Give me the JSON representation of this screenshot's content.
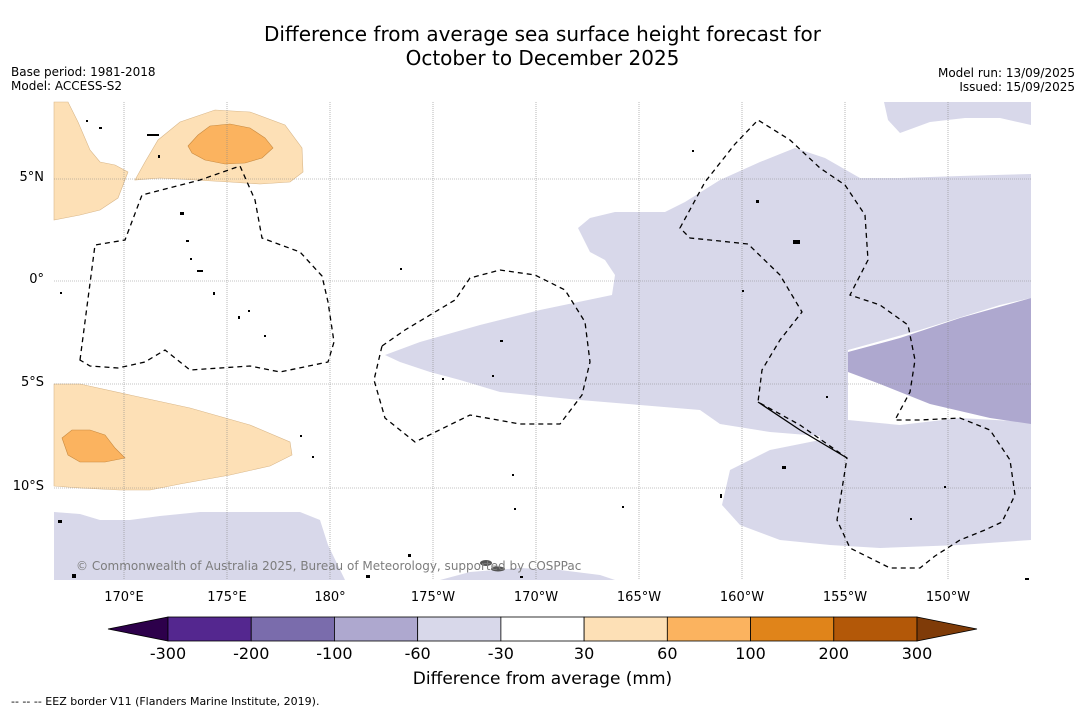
{
  "title_line1": "Difference from average sea surface height forecast for",
  "title_line2": "October to December 2025",
  "meta": {
    "base_period": "Base period: 1981-2018",
    "model": "Model: ACCESS-S2",
    "model_run": "Model run: 13/09/2025",
    "issued": "Issued: 15/09/2025"
  },
  "map": {
    "lat_labels": [
      "5°N",
      "0°",
      "5°S",
      "10°S"
    ],
    "lon_labels": [
      "170°E",
      "175°E",
      "180°",
      "175°W",
      "170°W",
      "165°W",
      "160°W",
      "155°W",
      "150°W"
    ],
    "copyright": "© Commonwealth of Australia 2025, Bureau of Meteorology, supported by COSPPac"
  },
  "colorbar": {
    "ticks": [
      "-300",
      "-200",
      "-100",
      "-60",
      "-30",
      "30",
      "60",
      "100",
      "200",
      "300"
    ],
    "colors": [
      "#54278f",
      "#7a6cac",
      "#aea8cf",
      "#d8d8ea",
      "#ffffff",
      "#fde0b6",
      "#fbb35f",
      "#e0841a",
      "#b35808"
    ],
    "under_color": "#2d004b",
    "over_color": "#7f3b08",
    "label": "Difference from average (mm)"
  },
  "footnote": "--  --  -- EEZ border V11 (Flanders Marine Institute, 2019)."
}
